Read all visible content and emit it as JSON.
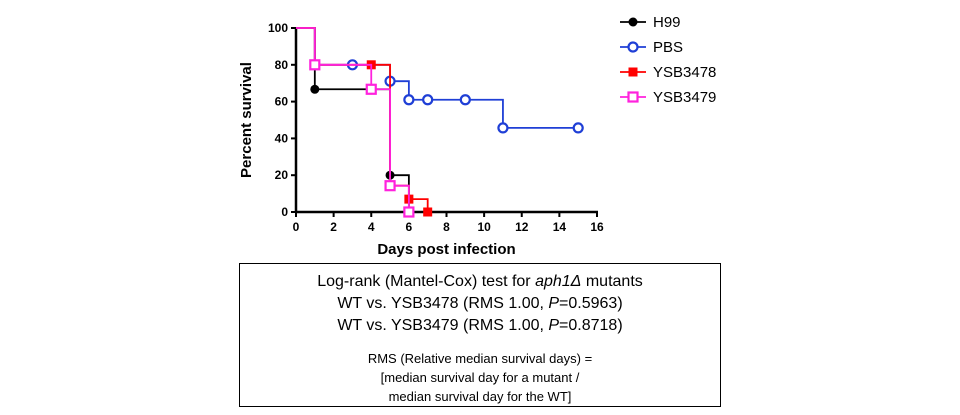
{
  "chart_data": {
    "type": "line",
    "step": true,
    "xlabel": "Days post infection",
    "ylabel": "Percent survival",
    "xlim": [
      0,
      16
    ],
    "ylim": [
      0,
      100
    ],
    "xticks": [
      0,
      2,
      4,
      6,
      8,
      10,
      12,
      14,
      16
    ],
    "yticks": [
      0,
      20,
      40,
      60,
      80,
      100
    ],
    "grid": false,
    "legend_position": "top-right",
    "series": [
      {
        "name": "H99",
        "color": "#000000",
        "marker": "filled-circle",
        "x": [
          0,
          1,
          5,
          6
        ],
        "y": [
          100,
          66.7,
          20,
          0
        ],
        "marker_x": [
          1,
          5,
          6
        ]
      },
      {
        "name": "PBS",
        "color": "#1f3fd6",
        "marker": "open-circle",
        "x": [
          0,
          1,
          3,
          5,
          6,
          7,
          9,
          11,
          15
        ],
        "y": [
          100,
          80,
          80,
          71.1,
          61,
          61,
          61,
          45.7,
          45.7
        ],
        "marker_x": [
          3,
          5,
          6,
          7,
          9,
          11,
          15
        ]
      },
      {
        "name": "YSB3478",
        "color": "#ff0000",
        "marker": "filled-square",
        "x": [
          0,
          1,
          4,
          5,
          6,
          7
        ],
        "y": [
          100,
          80,
          80,
          14.3,
          7,
          0
        ],
        "marker_x": [
          1,
          4,
          6,
          7
        ]
      },
      {
        "name": "YSB3479",
        "color": "#ff22dd",
        "marker": "open-square",
        "x": [
          0,
          1,
          4,
          5,
          6
        ],
        "y": [
          100,
          80,
          66.7,
          14.3,
          0
        ],
        "marker_x": [
          1,
          4,
          5,
          6
        ]
      }
    ]
  },
  "stats_box": {
    "title_prefix": "Log-rank (Mantel-Cox) test for ",
    "title_gene": "aph1Δ",
    "title_suffix": " mutants",
    "rows": [
      {
        "prefix": "WT vs. YSB3478 (RMS 1.00, ",
        "p": "P",
        "suffix": "=0.5963)"
      },
      {
        "prefix": "WT vs. YSB3479 (RMS 1.00, ",
        "p": "P",
        "suffix": "=0.8718)"
      }
    ],
    "note_line1": "RMS (Relative median survival days) =",
    "note_line2": "[median survival day for a mutant  /",
    "note_line3": "median survival day for the WT]"
  }
}
